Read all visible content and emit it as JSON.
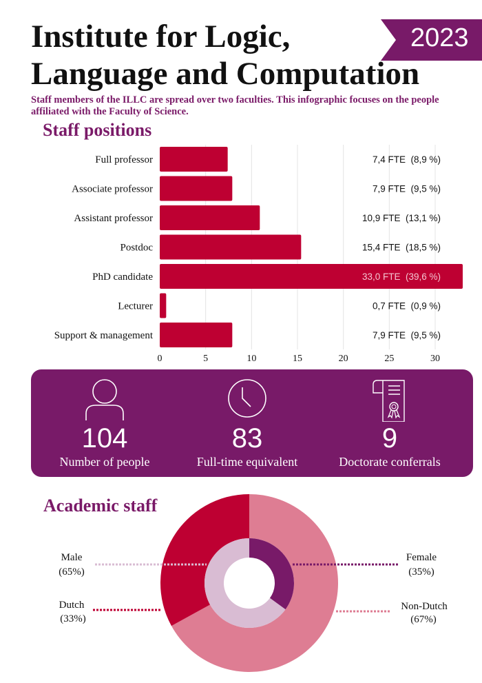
{
  "header": {
    "title_line1": "Institute for Logic,",
    "title_line2": "Language and Computation",
    "year": "2023",
    "intro": "Staff members of the ILLC are spread over two faculties. This infographic focuses on the people affiliated with the Faculty of Science."
  },
  "colors": {
    "purple": "#781a68",
    "crimson": "#be0032",
    "pink": "#de7d93",
    "lavender": "#d9bcd3"
  },
  "chart_data": [
    {
      "type": "bar",
      "orientation": "horizontal",
      "title": "Staff positions",
      "categories": [
        "Full professor",
        "Associate professor",
        "Assistant professor",
        "Postdoc",
        "PhD candidate",
        "Lecturer",
        "Support & management"
      ],
      "values": [
        7.4,
        7.9,
        10.9,
        15.4,
        33.0,
        0.7,
        7.9
      ],
      "data_labels": [
        "7,4 FTE  (8,9 %)",
        "7,9 FTE  (9,5 %)",
        "10,9 FTE  (13,1 %)",
        "15,4 FTE  (18,5 %)",
        "33,0 FTE  (39,6 %)",
        "0,7 FTE  (0,9 %)",
        "7,9 FTE  (9,5 %)"
      ],
      "xticks": [
        "0",
        "5",
        "10",
        "15",
        "20",
        "25",
        "30"
      ],
      "xlim": [
        0,
        33
      ],
      "grid": true,
      "color": "#be0032"
    },
    {
      "type": "pie",
      "title": "Academic staff",
      "style": "nested donut",
      "rings": [
        {
          "ring": "outer",
          "slices": [
            {
              "label": "Dutch",
              "value": 33,
              "text": "(33%)",
              "color": "#be0032"
            },
            {
              "label": "Non-Dutch",
              "value": 67,
              "text": "(67%)",
              "color": "#de7d93"
            }
          ]
        },
        {
          "ring": "inner",
          "slices": [
            {
              "label": "Female",
              "value": 35,
              "text": "(35%)",
              "color": "#781a68"
            },
            {
              "label": "Male",
              "value": 65,
              "text": "(65%)",
              "color": "#d9bcd3"
            }
          ]
        }
      ]
    }
  ],
  "stats": [
    {
      "icon": "person-icon",
      "value": "104",
      "label": "Number of people"
    },
    {
      "icon": "clock-icon",
      "value": "83",
      "label": "Full-time equivalent"
    },
    {
      "icon": "diploma-icon",
      "value": "9",
      "label": "Doctorate conferrals"
    }
  ]
}
